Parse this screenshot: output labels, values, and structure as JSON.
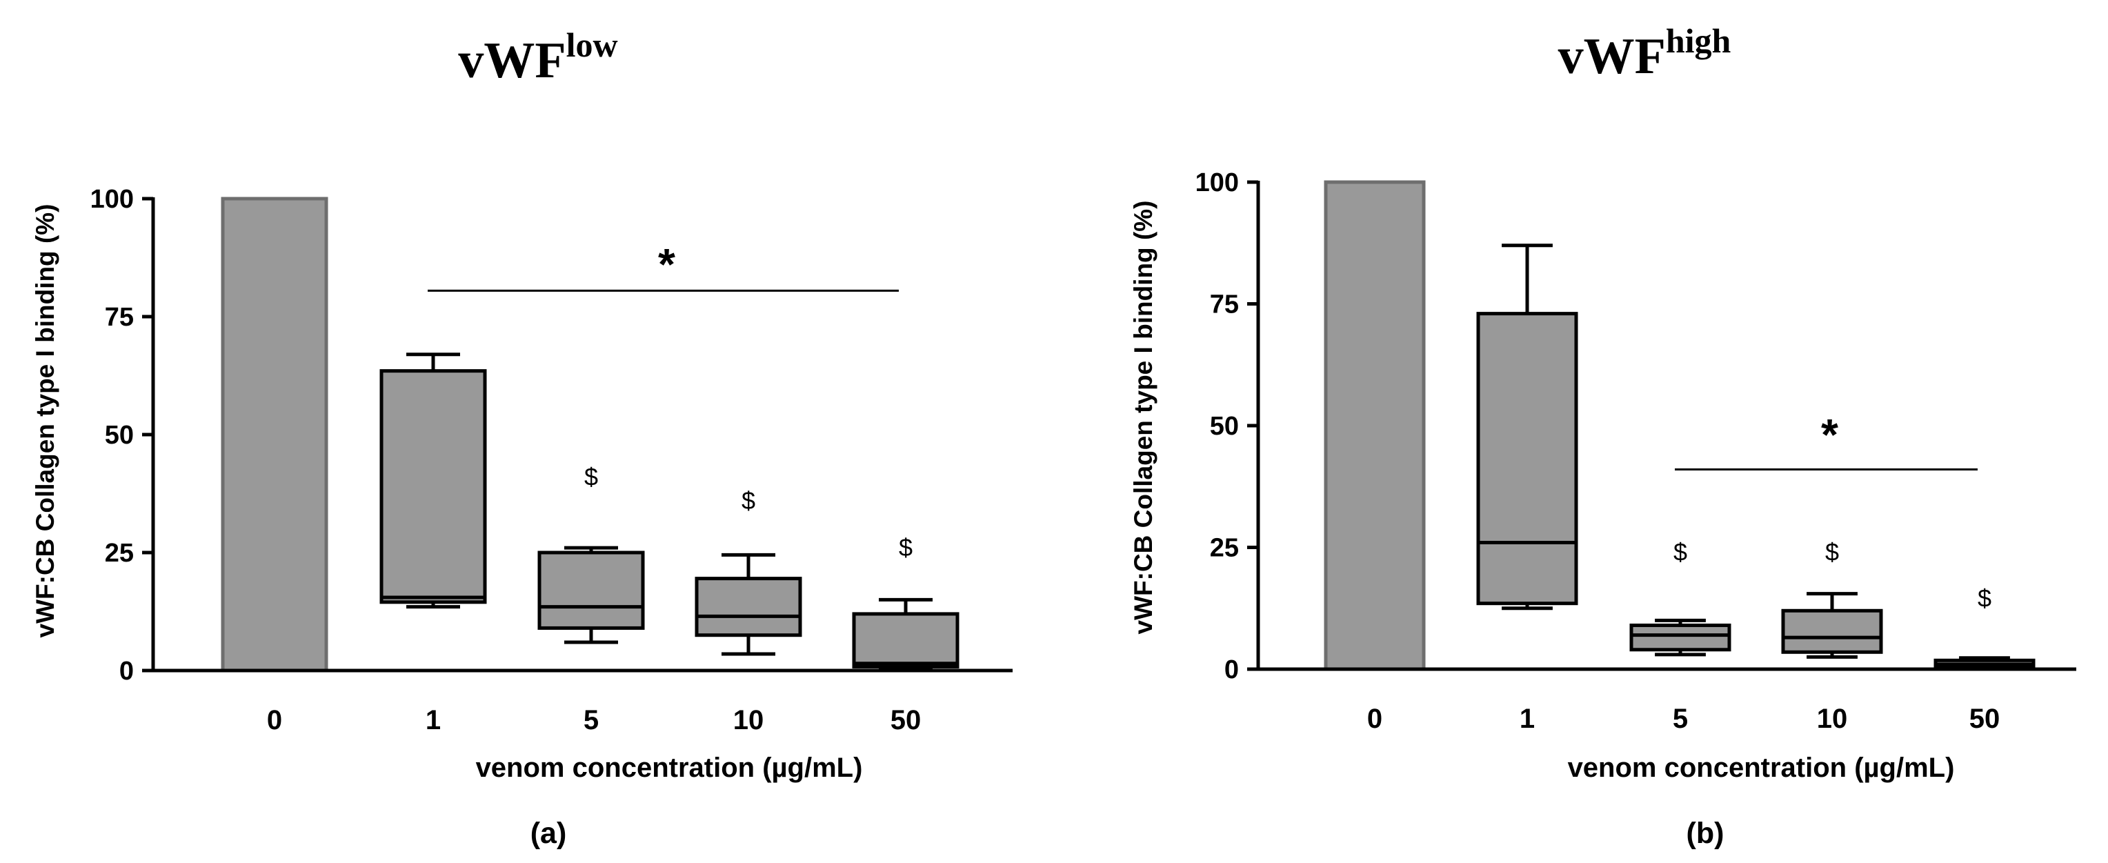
{
  "chart_data": [
    {
      "type": "box",
      "title": {
        "main": "vWF",
        "sup": "low"
      },
      "panel_label": "(a)",
      "xlabel": "venom concentration (µg/mL)",
      "ylabel": "vWF:CB Collagen type I binding (%)",
      "ylim": [
        0,
        100
      ],
      "yticks": [
        "0",
        "25",
        "50",
        "75",
        "100"
      ],
      "categories": [
        "0",
        "1",
        "5",
        "10",
        "50"
      ],
      "control_bar": {
        "category": "0",
        "value": 100
      },
      "boxes": [
        {
          "category": "1",
          "min": 13.5,
          "q1": 14.5,
          "median": 15.5,
          "q3": 63.5,
          "max": 67
        },
        {
          "category": "5",
          "min": 6,
          "q1": 9,
          "median": 13.5,
          "q3": 25,
          "max": 26
        },
        {
          "category": "10",
          "min": 3.5,
          "q1": 7.5,
          "median": 11.5,
          "q3": 19.5,
          "max": 24.5
        },
        {
          "category": "50",
          "min": 0.5,
          "q1": 0.8,
          "median": 1.5,
          "q3": 12,
          "max": 15
        }
      ],
      "dollar_marks": [
        {
          "category": "5",
          "symbol": "$",
          "y": 41
        },
        {
          "category": "10",
          "symbol": "$",
          "y": 36
        },
        {
          "category": "50",
          "symbol": "$",
          "y": 26
        }
      ],
      "significance": {
        "symbol": "*",
        "from": "1",
        "to": "50",
        "line_y": 80.5,
        "symbol_y": 87
      }
    },
    {
      "type": "box",
      "title": {
        "main": "vWF",
        "sup": "high"
      },
      "panel_label": "(b)",
      "xlabel": "venom concentration (µg/mL)",
      "ylabel": "vWF:CB Collagen type I binding (%)",
      "ylim": [
        0,
        100
      ],
      "yticks": [
        "0",
        "25",
        "50",
        "75",
        "100"
      ],
      "categories": [
        "0",
        "1",
        "5",
        "10",
        "50"
      ],
      "control_bar": {
        "category": "0",
        "value": 100
      },
      "boxes": [
        {
          "category": "1",
          "min": 12.5,
          "q1": 13.5,
          "median": 26,
          "q3": 73,
          "max": 87
        },
        {
          "category": "5",
          "min": 3,
          "q1": 4,
          "median": 7,
          "q3": 9,
          "max": 10
        },
        {
          "category": "10",
          "min": 2.5,
          "q1": 3.5,
          "median": 6.5,
          "q3": 12,
          "max": 15.5
        },
        {
          "category": "50",
          "min": 0.3,
          "q1": 0.5,
          "median": 1,
          "q3": 1.8,
          "max": 2.3
        }
      ],
      "dollar_marks": [
        {
          "category": "5",
          "symbol": "$",
          "y": 24
        },
        {
          "category": "10",
          "symbol": "$",
          "y": 24
        },
        {
          "category": "50",
          "symbol": "$",
          "y": 14.5
        }
      ],
      "significance": {
        "symbol": "*",
        "from": "5",
        "to": "50",
        "line_y": 41,
        "symbol_y": 49
      }
    }
  ]
}
